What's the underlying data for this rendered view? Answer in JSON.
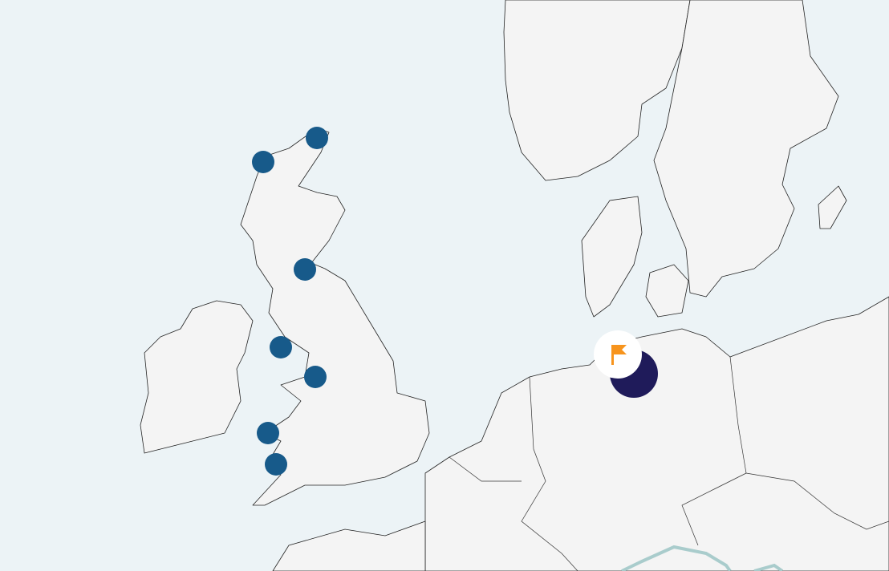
{
  "map": {
    "colors": {
      "sea": "#ecf3f6",
      "land": "#f4f4f4",
      "site_marker": "#175a8a",
      "cluster_marker": "#1f1b5a",
      "flag_marker_bg": "#ffffff",
      "flag_icon": "#f7941d",
      "river": "#a9cccc"
    },
    "markers": [
      {
        "type": "site",
        "icon": "circle"
      },
      {
        "type": "site",
        "icon": "circle"
      },
      {
        "type": "site",
        "icon": "circle"
      },
      {
        "type": "site",
        "icon": "circle"
      },
      {
        "type": "site",
        "icon": "circle"
      },
      {
        "type": "site",
        "icon": "circle"
      },
      {
        "type": "site",
        "icon": "circle"
      },
      {
        "type": "cluster",
        "icon": "circle"
      },
      {
        "type": "selected",
        "icon": "flag-icon"
      }
    ]
  }
}
